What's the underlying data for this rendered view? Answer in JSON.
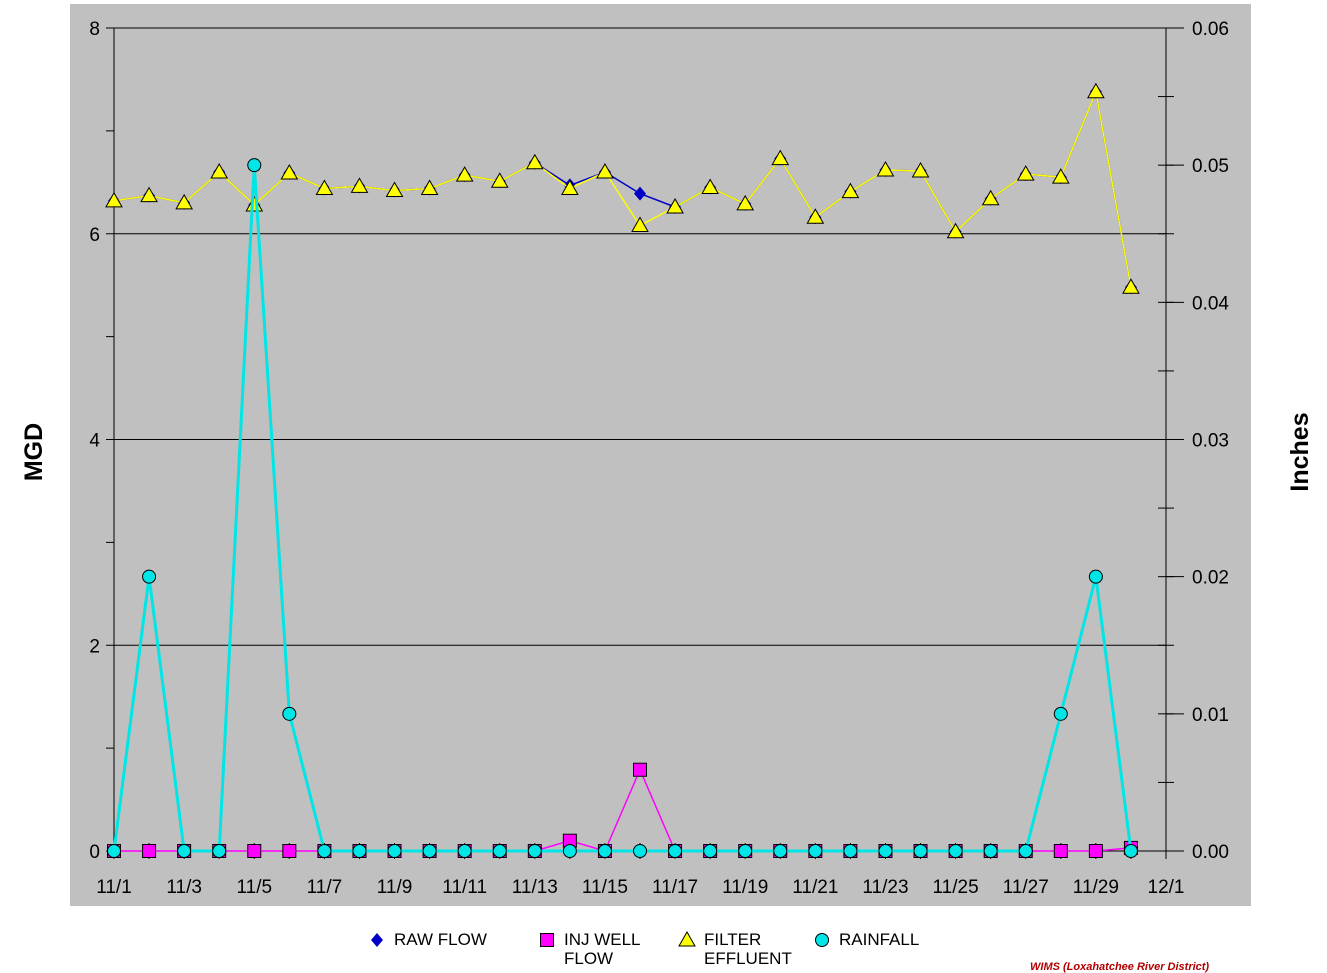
{
  "chart_data": {
    "type": "line",
    "x": [
      "11/1",
      "11/2",
      "11/3",
      "11/4",
      "11/5",
      "11/6",
      "11/7",
      "11/8",
      "11/9",
      "11/10",
      "11/11",
      "11/12",
      "11/13",
      "11/14",
      "11/15",
      "11/16",
      "11/17",
      "11/18",
      "11/19",
      "11/20",
      "11/21",
      "11/22",
      "11/23",
      "11/24",
      "11/25",
      "11/26",
      "11/27",
      "11/28",
      "11/29",
      "11/30"
    ],
    "x_tick_labels": [
      "11/1",
      "11/3",
      "11/5",
      "11/7",
      "11/9",
      "11/11",
      "11/13",
      "11/15",
      "11/17",
      "11/19",
      "11/21",
      "11/23",
      "11/25",
      "11/27",
      "11/29",
      "12/1"
    ],
    "ylabel_left": "MGD",
    "ylabel_right": "Inches",
    "ylim_left": [
      0,
      8
    ],
    "ylim_right": [
      0,
      0.06
    ],
    "y_ticks_left": [
      "0",
      "2",
      "4",
      "6",
      "8"
    ],
    "y_ticks_right": [
      "0.00",
      "0.01",
      "0.02",
      "0.03",
      "0.04",
      "0.05",
      "0.06"
    ],
    "grid": "horizontal",
    "legend_position": "bottom",
    "series": [
      {
        "name": "RAW FLOW",
        "axis": "left",
        "color": "#0000c8",
        "marker": "diamond",
        "values": [
          6.32,
          6.37,
          6.3,
          6.6,
          6.28,
          6.59,
          6.44,
          6.46,
          6.42,
          6.44,
          6.57,
          6.51,
          6.69,
          6.47,
          6.6,
          6.39,
          6.26,
          6.45,
          6.29,
          6.73,
          6.16,
          6.41,
          6.62,
          6.61,
          6.02,
          6.34,
          6.58,
          6.55,
          7.38,
          5.48
        ]
      },
      {
        "name": "INJ WELL\nFLOW",
        "axis": "left",
        "color": "#ff00ff",
        "marker": "square",
        "values": [
          0.0,
          0.0,
          0.0,
          0.0,
          0.0,
          0.0,
          0.0,
          0.0,
          0.0,
          0.0,
          0.0,
          0.0,
          0.0,
          0.1,
          0.0,
          0.79,
          0.0,
          0.0,
          0.0,
          0.0,
          0.0,
          0.0,
          0.0,
          0.0,
          0.0,
          0.0,
          0.0,
          0.0,
          0.0,
          0.03
        ]
      },
      {
        "name": "FILTER\nEFFLUENT",
        "axis": "left",
        "color": "#ffff00",
        "marker": "triangle",
        "values": [
          6.32,
          6.37,
          6.3,
          6.6,
          6.28,
          6.59,
          6.44,
          6.46,
          6.42,
          6.44,
          6.57,
          6.51,
          6.69,
          6.44,
          6.6,
          6.08,
          6.26,
          6.45,
          6.29,
          6.73,
          6.16,
          6.41,
          6.62,
          6.61,
          6.02,
          6.34,
          6.58,
          6.55,
          7.38,
          5.48
        ]
      },
      {
        "name": "RAINFALL",
        "axis": "right",
        "color": "#00e5e5",
        "marker": "circle",
        "values": [
          0,
          0.02,
          0,
          0,
          0.05,
          0.01,
          0,
          0,
          0,
          0,
          0,
          0,
          0,
          0,
          0,
          0,
          0,
          0,
          0,
          0,
          0,
          0,
          0,
          0,
          0,
          0,
          0,
          0.01,
          0.02,
          0
        ]
      }
    ]
  },
  "credit": "WIMS (Loxahatchee River District)"
}
